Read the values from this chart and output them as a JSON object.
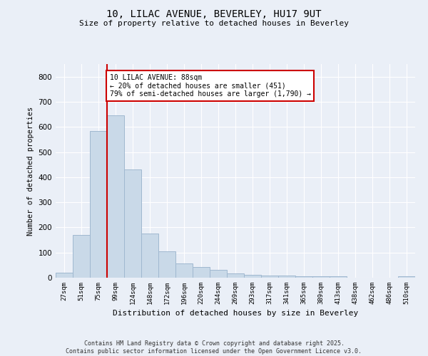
{
  "title1": "10, LILAC AVENUE, BEVERLEY, HU17 9UT",
  "title2": "Size of property relative to detached houses in Beverley",
  "xlabel": "Distribution of detached houses by size in Beverley",
  "ylabel": "Number of detached properties",
  "categories": [
    "27sqm",
    "51sqm",
    "75sqm",
    "99sqm",
    "124sqm",
    "148sqm",
    "172sqm",
    "196sqm",
    "220sqm",
    "244sqm",
    "269sqm",
    "293sqm",
    "317sqm",
    "341sqm",
    "365sqm",
    "389sqm",
    "413sqm",
    "438sqm",
    "462sqm",
    "486sqm",
    "510sqm"
  ],
  "values": [
    20,
    170,
    585,
    645,
    430,
    175,
    105,
    58,
    42,
    32,
    17,
    12,
    9,
    9,
    6,
    6,
    5,
    0,
    0,
    0,
    6
  ],
  "bar_color": "#c9d9e8",
  "bar_edge_color": "#a0b8d0",
  "vline_x": 2.5,
  "vline_color": "#cc0000",
  "annotation_text": "10 LILAC AVENUE: 88sqm\n← 20% of detached houses are smaller (451)\n79% of semi-detached houses are larger (1,790) →",
  "annotation_box_color": "#ffffff",
  "annotation_box_edge": "#cc0000",
  "ylim": [
    0,
    850
  ],
  "yticks": [
    0,
    100,
    200,
    300,
    400,
    500,
    600,
    700,
    800
  ],
  "bg_color": "#eaeff7",
  "plot_bg_color": "#eaeff7",
  "footer1": "Contains HM Land Registry data © Crown copyright and database right 2025.",
  "footer2": "Contains public sector information licensed under the Open Government Licence v3.0."
}
